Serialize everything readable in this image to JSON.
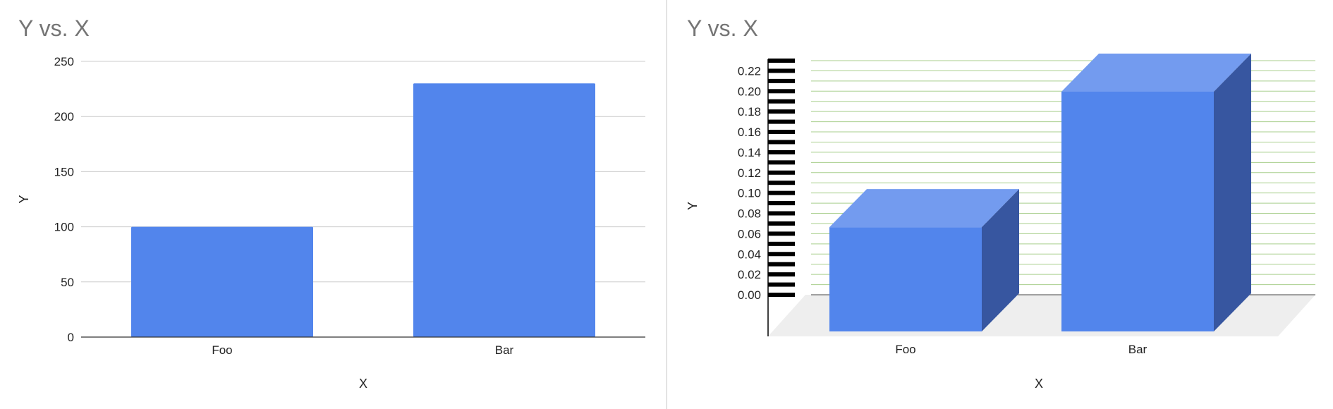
{
  "chart_data": [
    {
      "type": "bar",
      "title": "Y vs. X",
      "xlabel": "X",
      "ylabel": "Y",
      "categories": [
        "Foo",
        "Bar"
      ],
      "values": [
        100,
        230
      ],
      "ylim": [
        0,
        250
      ],
      "yticks": [
        0,
        50,
        100,
        150,
        200,
        250
      ],
      "grid": true,
      "legend": "none",
      "colors": {
        "bar": "#5285ec",
        "grid": "#cccccc",
        "axis": "#333333"
      }
    },
    {
      "type": "bar",
      "style": "3d",
      "title": "Y vs. X",
      "xlabel": "X",
      "ylabel": "Y",
      "categories": [
        "Foo",
        "Bar"
      ],
      "values": [
        0.1,
        0.23
      ],
      "ylim": [
        0,
        0.23
      ],
      "yticks": [
        "0.00",
        "0.02",
        "0.04",
        "0.06",
        "0.08",
        "0.10",
        "0.12",
        "0.14",
        "0.16",
        "0.18",
        "0.20",
        "0.22"
      ],
      "grid": true,
      "legend": "none",
      "colors": {
        "bar_front": "#5285ec",
        "bar_top": "#739bef",
        "bar_side": "#3756a0",
        "grid": "#a9cf8d",
        "floor": "#eeeeee",
        "ticks": "#000000"
      }
    }
  ]
}
